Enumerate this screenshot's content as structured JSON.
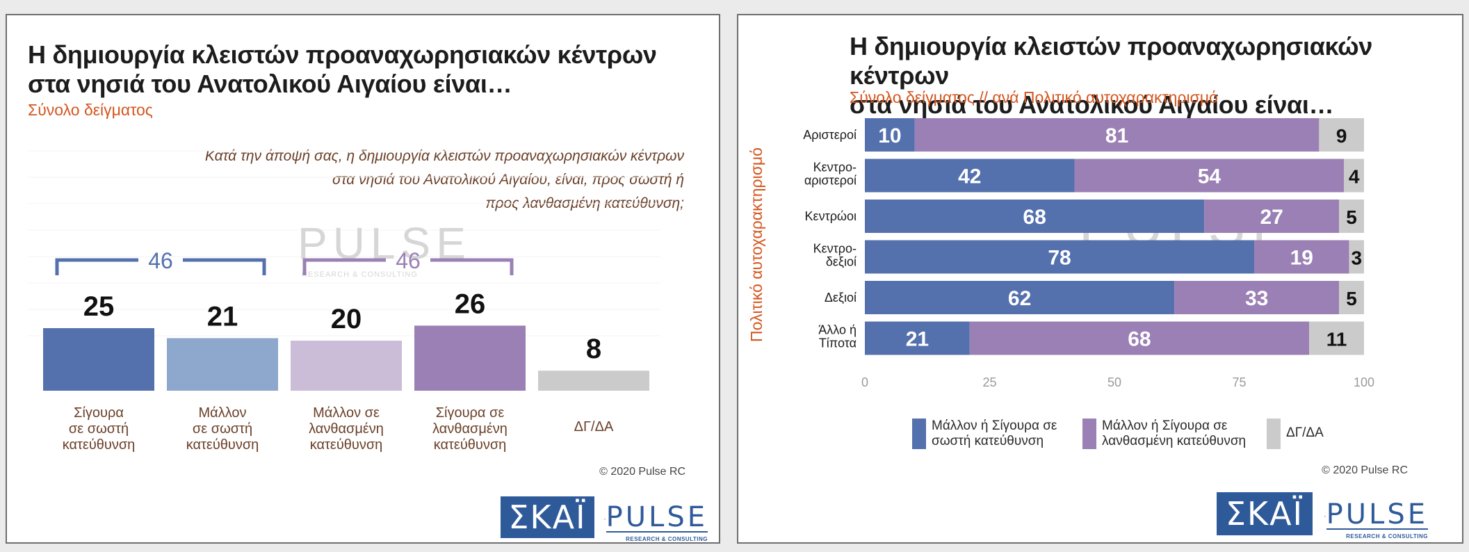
{
  "left": {
    "title_line1": "Η δημιουργία κλειστών προαναχωρησιακών κέντρων",
    "title_line2": "στα νησιά του Ανατολικού Αιγαίου είναι…",
    "subtitle": "Σύνολο δείγματος",
    "question_line1": "Κατά την άποψή σας, η δημιουργία κλειστών προαναχωρησιακών κέντρων",
    "question_line2": "στα νησιά του Ανατολικού Αιγαίου, είναι, προς σωστή ή",
    "question_line3": "προς λανθασμένη κατεύθυνση;",
    "bracket_left_label": "46",
    "bracket_right_label": "46",
    "copyright": "© 2020 Pulse RC",
    "skai_logo": "ΣΚΑΪ",
    "pulse_logo": "PULSE",
    "pulse_logo_sub": "RESEARCH & CONSULTING"
  },
  "right": {
    "title_line1": "Η δημιουργία κλειστών προαναχωρησιακών κέντρων",
    "title_line2": "στα νησιά του Ανατολικού Αιγαίου είναι…",
    "subtitle": "Σύνολο δείγματος // ανά Πολιτικό αυτοχαρακτηρισμό",
    "copyright": "© 2020 Pulse RC",
    "skai_logo": "ΣΚΑΪ",
    "pulse_logo": "PULSE",
    "pulse_logo_sub": "RESEARCH & CONSULTING"
  },
  "watermark": {
    "word": "PULSE",
    "sub": "RESEARCH & CONSULTING"
  },
  "colors": {
    "dark_blue": "#5470ad",
    "light_blue": "#8ea7cd",
    "light_purple": "#cbbcd8",
    "purple": "#9a80b4",
    "grey": "#cbcbcb",
    "accent_orange": "#d4561f",
    "label_brown": "#6a3f28"
  },
  "chart_data": [
    {
      "type": "bar",
      "categories": [
        [
          "Σίγουρα",
          "σε σωστή",
          "κατεύθυνση"
        ],
        [
          "Μάλλον",
          "σε σωστή",
          "κατεύθυνση"
        ],
        [
          "Μάλλον σε",
          "λανθασμένη",
          "κατεύθυνση"
        ],
        [
          "Σίγουρα σε",
          "λανθασμένη",
          "κατεύθυνση"
        ],
        [
          "ΔΓ/ΔΑ"
        ]
      ],
      "values": [
        25,
        21,
        20,
        26,
        8
      ],
      "bar_colors": [
        "#5470ad",
        "#8ea7cd",
        "#cbbcd8",
        "#9a80b4",
        "#cbcbcb"
      ],
      "brackets": [
        {
          "from": 0,
          "to": 1,
          "label": "46",
          "color": "#5470ad"
        },
        {
          "from": 2,
          "to": 3,
          "label": "46",
          "color": "#9a80b4"
        }
      ],
      "ylim": [
        0,
        30
      ]
    },
    {
      "type": "bar",
      "orientation": "horizontal",
      "stacked": true,
      "ylabel": "Πολιτικό αυτοχαρακτηρισμό",
      "categories": [
        [
          "Αριστεροί"
        ],
        [
          "Κεντρο-",
          "αριστεροί"
        ],
        [
          "Κεντρώοι"
        ],
        [
          "Κεντρο-",
          "δεξιοί"
        ],
        [
          "Δεξιοί"
        ],
        [
          "Άλλο ή",
          "Τίποτα"
        ]
      ],
      "series": [
        {
          "name": "Μάλλον ή Σίγουρα σε σωστή κατεύθυνση",
          "color": "#5470ad",
          "values": [
            10,
            42,
            68,
            78,
            62,
            21
          ]
        },
        {
          "name": "Μάλλον ή Σίγουρα σε λανθασμένη κατεύθυνση",
          "color": "#9a80b4",
          "values": [
            81,
            54,
            27,
            19,
            33,
            68
          ]
        },
        {
          "name": "ΔΓ/ΔΑ",
          "color": "#cbcbcb",
          "values": [
            9,
            4,
            5,
            3,
            5,
            11
          ]
        }
      ],
      "xticks": [
        "0",
        "25",
        "50",
        "75",
        "100"
      ],
      "xlim": [
        0,
        100
      ],
      "legend_position": "bottom"
    }
  ]
}
